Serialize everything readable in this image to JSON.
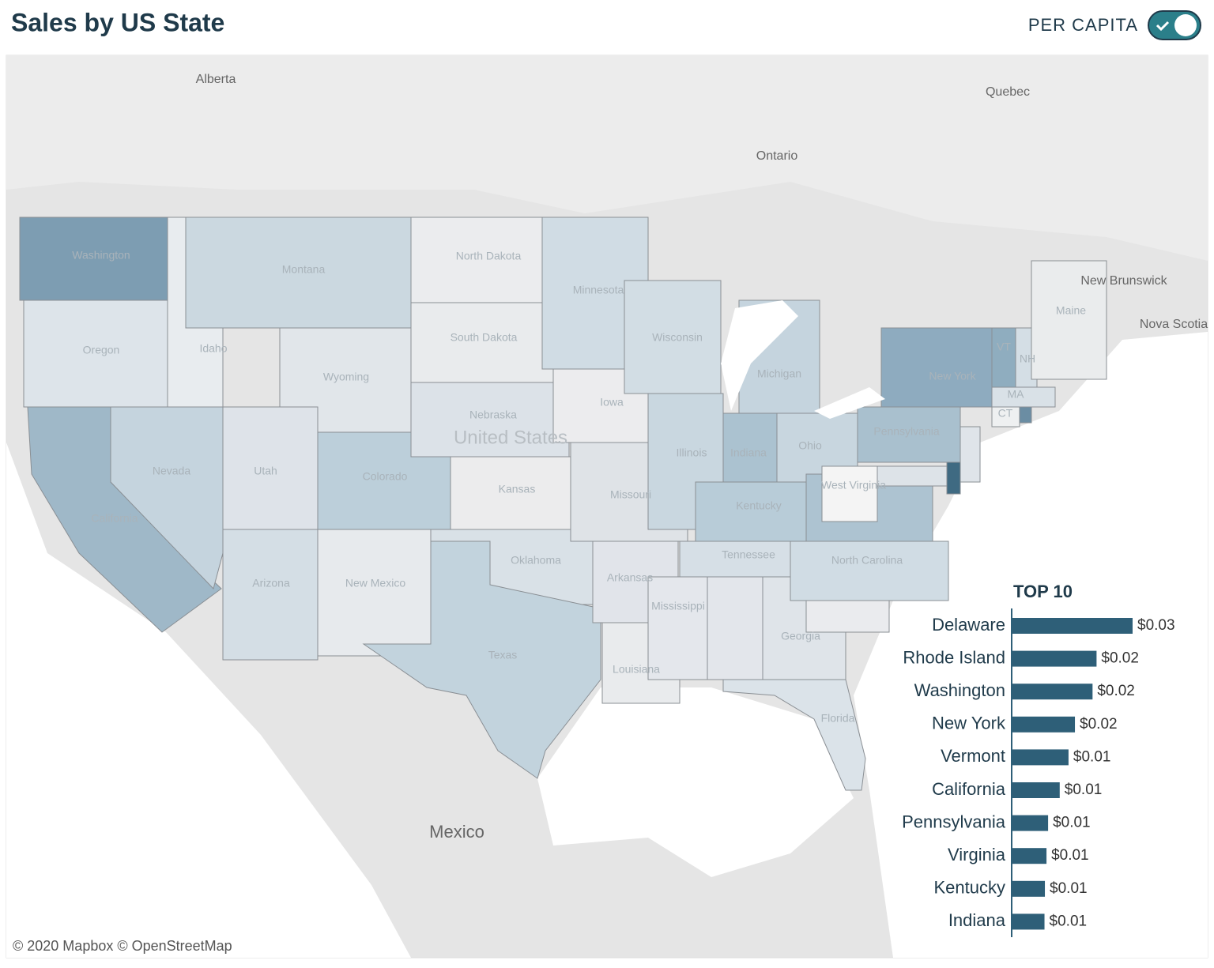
{
  "header": {
    "title": "Sales by US State",
    "toggle_label": "PER CAPITA"
  },
  "map": {
    "region_labels": [
      "Alberta",
      "Quebec",
      "Ontario",
      "New Brunswick",
      "Nova Scotia",
      "United States",
      "Mexico"
    ],
    "attribution": "© 2020 Mapbox © OpenStreetMap",
    "states": [
      {
        "name": "Washington",
        "color": "#7d9db2"
      },
      {
        "name": "Oregon",
        "color": "#dde4ea"
      },
      {
        "name": "California",
        "color": "#9fb8c8"
      },
      {
        "name": "Idaho",
        "color": "#e8ecef"
      },
      {
        "name": "Nevada",
        "color": "#c5d4de"
      },
      {
        "name": "Montana",
        "color": "#cbd8e0"
      },
      {
        "name": "Wyoming",
        "color": "#e1e6ea"
      },
      {
        "name": "Utah",
        "color": "#dee3e9"
      },
      {
        "name": "Colorado",
        "color": "#bccfda"
      },
      {
        "name": "Arizona",
        "color": "#d4dee5"
      },
      {
        "name": "New Mexico",
        "color": "#e7eaed"
      },
      {
        "name": "North Dakota",
        "color": "#ebecee"
      },
      {
        "name": "South Dakota",
        "color": "#e9ebed"
      },
      {
        "name": "Nebraska",
        "color": "#dce2e8"
      },
      {
        "name": "Kansas",
        "color": "#ececed"
      },
      {
        "name": "Oklahoma",
        "color": "#d9e1e7"
      },
      {
        "name": "Texas",
        "color": "#c2d3dd"
      },
      {
        "name": "Minnesota",
        "color": "#d0dce4"
      },
      {
        "name": "Iowa",
        "color": "#ececee"
      },
      {
        "name": "Missouri",
        "color": "#dfe3e7"
      },
      {
        "name": "Arkansas",
        "color": "#e1e4ea"
      },
      {
        "name": "Louisiana",
        "color": "#e9ebed"
      },
      {
        "name": "Wisconsin",
        "color": "#d2dde4"
      },
      {
        "name": "Illinois",
        "color": "#c9d7e0"
      },
      {
        "name": "Michigan",
        "color": "#c5d4de"
      },
      {
        "name": "Indiana",
        "color": "#abc2d0"
      },
      {
        "name": "Ohio",
        "color": "#c8d6df"
      },
      {
        "name": "Kentucky",
        "color": "#b8ccd8"
      },
      {
        "name": "Tennessee",
        "color": "#d6dfe6"
      },
      {
        "name": "Mississippi",
        "color": "#e4e7ec"
      },
      {
        "name": null,
        "color": "#e3e6eb"
      },
      {
        "name": "Georgia",
        "color": "#dfe4e9"
      },
      {
        "name": "Florida",
        "color": "#dbe3e9"
      },
      {
        "name": null,
        "color": "#eaebee"
      },
      {
        "name": "North Carolina",
        "color": "#d0dce4"
      },
      {
        "name": null,
        "color": "#adc3d1"
      },
      {
        "name": "West Virginia",
        "color": "#f4f4f4"
      },
      {
        "name": "Pennsylvania",
        "color": "#a9c0ce"
      },
      {
        "name": "New York",
        "color": "#8eabbf"
      },
      {
        "name": "VT",
        "color": "#8fadbf"
      },
      {
        "name": "NH",
        "color": "#d4dee5"
      },
      {
        "name": "Maine",
        "color": "#eaeced"
      },
      {
        "name": "MA",
        "color": "#d9e1e7"
      },
      {
        "name": "CT",
        "color": "#eef0f1"
      },
      {
        "name": null,
        "color": "#6b8da3"
      },
      {
        "name": null,
        "color": "#dfe4e9"
      },
      {
        "name": null,
        "color": "#3f6a82"
      },
      {
        "name": null,
        "color": "#dde3e8"
      }
    ]
  },
  "chart_data": {
    "type": "bar",
    "title": "TOP 10",
    "color": "#2e5f78",
    "categories": [
      "Delaware",
      "Rhode Island",
      "Washington",
      "New York",
      "Vermont",
      "California",
      "Pennsylvania",
      "Virginia",
      "Kentucky",
      "Indiana"
    ],
    "values": [
      0.03,
      0.021,
      0.02,
      0.0156,
      0.014,
      0.0118,
      0.0089,
      0.0085,
      0.0081,
      0.008
    ],
    "value_labels": [
      "$0.03",
      "$0.02",
      "$0.02",
      "$0.02",
      "$0.01",
      "$0.01",
      "$0.01",
      "$0.01",
      "$0.01",
      "$0.01"
    ]
  }
}
